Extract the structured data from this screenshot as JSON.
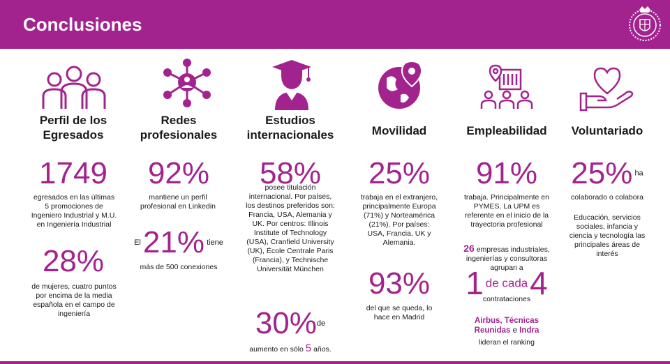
{
  "header": {
    "title": "Conclusiones"
  },
  "perfil": {
    "title_1": "Perfil de los",
    "title_2": "Egresados",
    "stat1": "1749",
    "stat1_text_1": "egresados en las últimas",
    "stat1_text_2": "5 promociones de",
    "stat1_text_3": "Ingeniero Industrial y M.U.",
    "stat1_text_4": "en Ingeniería Industrial",
    "stat2": "28%",
    "stat2_text_1": "de mujeres, cuatro puntos",
    "stat2_text_2": "por encima de la media",
    "stat2_text_3": "española en el campo de",
    "stat2_text_4": "ingeniería"
  },
  "redes": {
    "title_1": "Redes",
    "title_2": "profesionales",
    "stat1": "92%",
    "stat1_text_1": "mantiene un perfil",
    "stat1_text_2": "profesional en Linkedin",
    "pre2": "El",
    "stat2": "21%",
    "post2": "tiene",
    "stat2_text_1": "más de 500 conexiones"
  },
  "estudios": {
    "title_1": "Estudios",
    "title_2": "internacionales",
    "stat1": "58%",
    "stat1_text": [
      "posee titulación",
      "internacional. Por países,",
      "los destinos preferidos son:",
      "Francia, USA,  Alemania y",
      "UK. Por centros: Illinois",
      "Institute of Technology",
      "(USA), Cranfield University",
      "(UK),  École Centrale Paris",
      "(Francia), y Technische",
      "Universität München"
    ],
    "stat2": "30%",
    "post2": "de",
    "stat2_text_a": "aumento en sólo",
    "stat2_text_b": "5",
    "stat2_text_c": "años."
  },
  "movilidad": {
    "title": "Movilidad",
    "stat1": "25%",
    "stat1_text": [
      "trabaja en el extranjero,",
      "principalmente Europa",
      "(71%) y Norteamérica",
      "(21%). Por países:",
      "USA, Francia, UK y",
      "Alemania."
    ],
    "stat2": "93%",
    "stat2_text_1": "del que se queda, lo",
    "stat2_text_2": "hace en Madrid"
  },
  "empleabilidad": {
    "title": "Empleabilidad",
    "stat1": "91%",
    "stat1_text": [
      "trabaja. Principalmente en",
      "PYMES. La UPM es",
      "referente en el inicio de la",
      "trayectoria profesional"
    ],
    "n26": "26",
    "text26_a": "empresas industriales,",
    "text26_b": "ingenierías y consultoras",
    "text26_c": "agrupan a",
    "one": "1",
    "de_cada": "de cada",
    "four": "4",
    "contrataciones": "contrataciones",
    "companies_1": "Airbus, Técnicas",
    "companies_2": "Reunidas",
    "e": "e",
    "companies_3": "Indra",
    "lideran": "lideran el ranking"
  },
  "voluntariado": {
    "title": "Voluntariado",
    "stat1": "25%",
    "ha": "ha",
    "text1": "colaborado o colabora",
    "text2": [
      "Educación, servicios",
      "sociales, infancia y",
      "ciencia y tecnología las",
      "principales áreas de",
      "interés"
    ]
  },
  "colors": {
    "accent": "#a3238e",
    "text": "#1a1a1a"
  }
}
